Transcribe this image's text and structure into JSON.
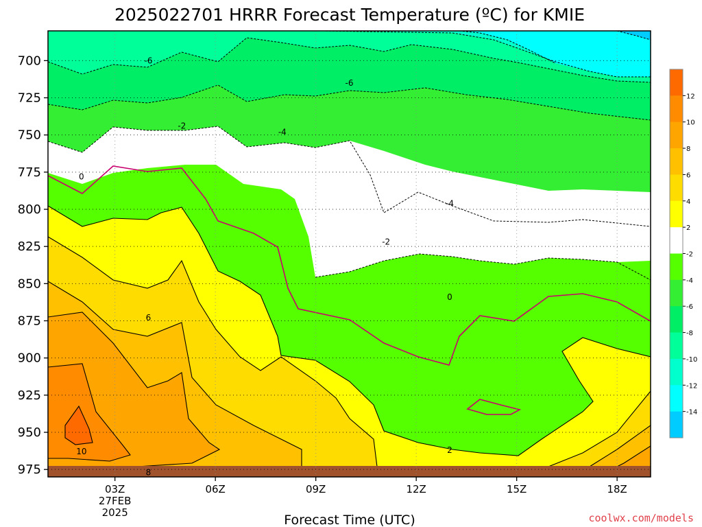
{
  "chart_data": {
    "type": "contour",
    "title": "2025022701 HRRR Forecast Temperature (ºC) for KMIE",
    "xlabel": "Forecast Time (UTC)",
    "ylabel": "",
    "x_ticks": [
      "03Z",
      "06Z",
      "09Z",
      "12Z",
      "15Z",
      "18Z"
    ],
    "x_tick_hours": [
      3,
      6,
      9,
      12,
      15,
      18
    ],
    "x_date_label": [
      "27FEB",
      "2025"
    ],
    "xlim_hours": [
      1,
      19
    ],
    "y_ticks": [
      700,
      725,
      750,
      775,
      800,
      825,
      850,
      875,
      900,
      925,
      950,
      975
    ],
    "ylim_hpa": [
      680,
      980
    ],
    "y_inverted": true,
    "grid": true,
    "colorbar": {
      "ticks": [
        12,
        10,
        8,
        6,
        4,
        2,
        -2,
        -4,
        -6,
        -8,
        -10,
        -12,
        -14
      ],
      "bands": [
        {
          "range": [
            12,
            14
          ],
          "color": "#ff6a00"
        },
        {
          "range": [
            10,
            12
          ],
          "color": "#ff8c00"
        },
        {
          "range": [
            8,
            10
          ],
          "color": "#ffa500"
        },
        {
          "range": [
            6,
            8
          ],
          "color": "#ffc000"
        },
        {
          "range": [
            4,
            6
          ],
          "color": "#ffdc00"
        },
        {
          "range": [
            2,
            4
          ],
          "color": "#ffff00"
        },
        {
          "range": [
            -2,
            2
          ],
          "color": "#ffffff"
        },
        {
          "range": [
            -4,
            -2
          ],
          "color": "#55ff00"
        },
        {
          "range": [
            -6,
            -4
          ],
          "color": "#33ee33"
        },
        {
          "range": [
            -8,
            -6
          ],
          "color": "#00ee66"
        },
        {
          "range": [
            -10,
            -8
          ],
          "color": "#00ff99"
        },
        {
          "range": [
            -12,
            -10
          ],
          "color": "#00ffcc"
        },
        {
          "range": [
            -14,
            -12
          ],
          "color": "#00ffff"
        },
        {
          "range": [
            -16,
            -14
          ],
          "color": "#00ccff"
        }
      ]
    },
    "contour_labels": [
      {
        "text": "-6",
        "x_hour": 4.0,
        "p": 700
      },
      {
        "text": "-6",
        "x_hour": 10.0,
        "p": 715
      },
      {
        "text": "-2",
        "x_hour": 5.0,
        "p": 744
      },
      {
        "text": "-4",
        "x_hour": 8.0,
        "p": 748
      },
      {
        "text": "-4",
        "x_hour": 13.0,
        "p": 796
      },
      {
        "text": "-2",
        "x_hour": 11.1,
        "p": 822
      },
      {
        "text": "0",
        "x_hour": 2.0,
        "p": 778
      },
      {
        "text": "0",
        "x_hour": 13.0,
        "p": 859
      },
      {
        "text": "6",
        "x_hour": 4.0,
        "p": 873
      },
      {
        "text": "10",
        "x_hour": 2.0,
        "p": 963
      },
      {
        "text": "8",
        "x_hour": 4.0,
        "p": 977
      },
      {
        "text": "2",
        "x_hour": 13.0,
        "p": 962
      }
    ],
    "ground_color": "#a0522d",
    "below_ground_p": 973,
    "credit": "coolwx.com/models",
    "credit_color": "#e0404a"
  }
}
